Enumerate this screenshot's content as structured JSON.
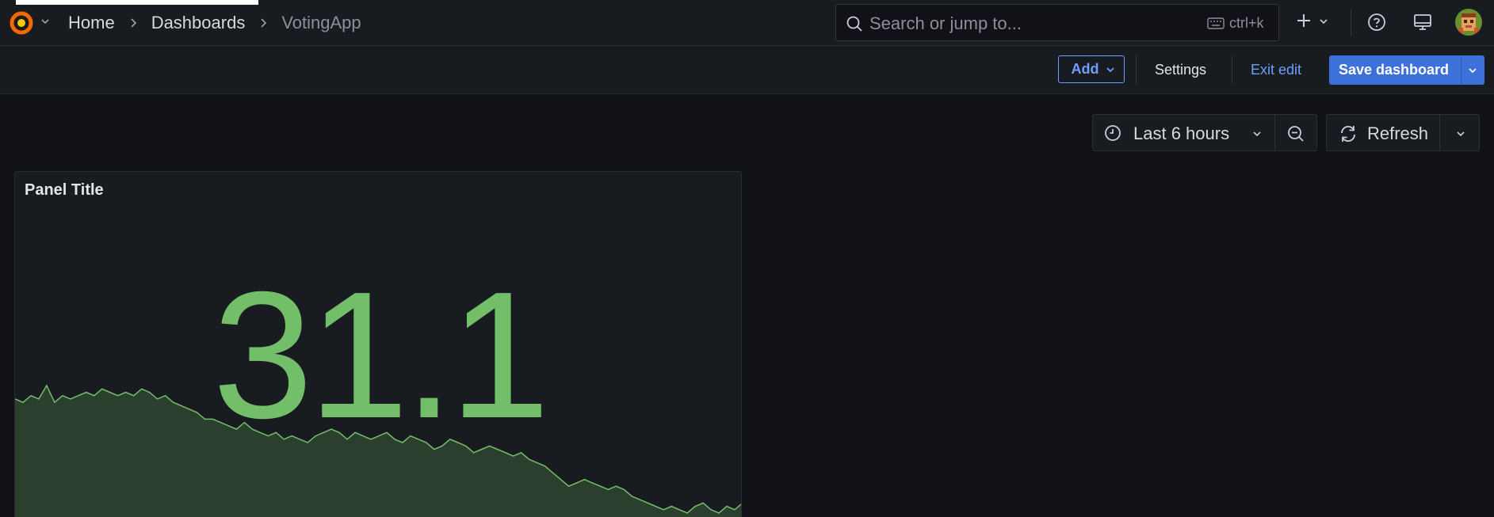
{
  "breadcrumbs": [
    "Home",
    "Dashboards",
    "VotingApp"
  ],
  "search": {
    "placeholder": "Search or jump to...",
    "shortcut": "ctrl+k"
  },
  "topbar_icons": [
    "grafana-logo-icon",
    "plus-icon",
    "help-icon",
    "monitor-icon",
    "avatar"
  ],
  "toolbar": {
    "add_label": "Add",
    "settings_label": "Settings",
    "exit_label": "Exit edit",
    "save_label": "Save dashboard"
  },
  "time": {
    "range_label": "Last 6 hours",
    "refresh_label": "Refresh"
  },
  "panel": {
    "title": "Panel Title",
    "value": "31.1",
    "color": "#73bf69",
    "sparkline": [
      34,
      33,
      35,
      34,
      38,
      33,
      35,
      34,
      35,
      36,
      35,
      37,
      36,
      35,
      36,
      35,
      37,
      36,
      34,
      35,
      33,
      32,
      31,
      30,
      28,
      28,
      27,
      26,
      25,
      27,
      25,
      24,
      23,
      24,
      22,
      23,
      22,
      21,
      23,
      24,
      25,
      24,
      22,
      24,
      23,
      22,
      23,
      24,
      22,
      21,
      23,
      22,
      21,
      19,
      20,
      22,
      21,
      20,
      18,
      19,
      20,
      19,
      18,
      17,
      18,
      16,
      15,
      14,
      12,
      10,
      8,
      9,
      10,
      9,
      8,
      7,
      8,
      7,
      5,
      4,
      3,
      2,
      1,
      2,
      1,
      0,
      2,
      3,
      1,
      0,
      2,
      1,
      3
    ]
  },
  "colors": {
    "accent": "#6e9fff",
    "primary_button": "#3d71d9",
    "stat_green": "#73bf69"
  }
}
